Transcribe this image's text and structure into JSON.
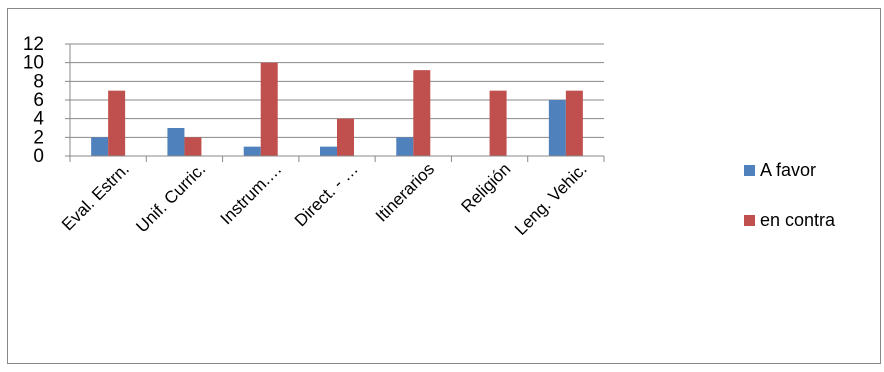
{
  "chart_data": {
    "type": "bar",
    "categories": [
      "Eval. Estrn.",
      "Unif. Curric.",
      "Instrum.…",
      "Direct. - …",
      "Itinerarios",
      "Religión",
      "Leng. Vehic."
    ],
    "series": [
      {
        "name": "A favor",
        "values": [
          2,
          3,
          1,
          1,
          2,
          0,
          6
        ],
        "color": "#4F81BD"
      },
      {
        "name": "en contra",
        "values": [
          7,
          2,
          10,
          4,
          9.2,
          7,
          7
        ],
        "color": "#C0504D"
      }
    ],
    "ylim": [
      0,
      12
    ],
    "yticks": [
      0,
      2,
      4,
      6,
      8,
      10,
      12
    ],
    "grid": true,
    "legend_position": "right"
  }
}
